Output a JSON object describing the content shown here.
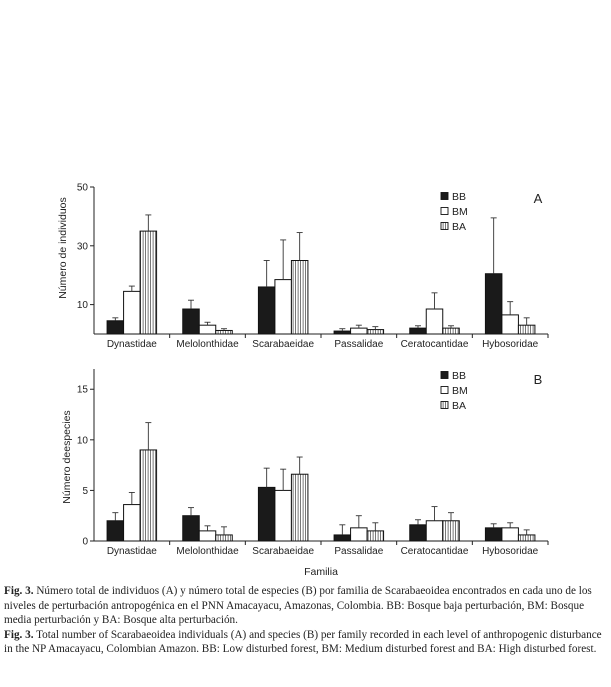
{
  "chart_data": [
    {
      "type": "bar",
      "panel_label": "A",
      "ylabel": "Número de individuos",
      "xlabel": "",
      "ylim": [
        0,
        50
      ],
      "yticks": [
        10,
        30,
        50
      ],
      "categories": [
        "Dynastidae",
        "Melolonthidae",
        "Scarabaeidae",
        "Passalidae",
        "Ceratocantidae",
        "Hybosoridae"
      ],
      "series": [
        {
          "name": "BB",
          "values": [
            4.5,
            8.5,
            16,
            1,
            2,
            20.5
          ],
          "errors": [
            1,
            3,
            9,
            0.8,
            0.8,
            19
          ]
        },
        {
          "name": "BM",
          "values": [
            14.5,
            3,
            18.5,
            2,
            8.5,
            6.5
          ],
          "errors": [
            1.8,
            1,
            13.5,
            1,
            5.5,
            4.5
          ]
        },
        {
          "name": "BA",
          "values": [
            35,
            1.2,
            25,
            1.5,
            2,
            3
          ],
          "errors": [
            5.5,
            0.6,
            9.5,
            1,
            0.8,
            2.5
          ]
        }
      ],
      "legend_position": "top-right",
      "grid": false
    },
    {
      "type": "bar",
      "panel_label": "B",
      "ylabel": "Número deespecies",
      "xlabel": "Familia",
      "ylim": [
        0,
        17
      ],
      "yticks": [
        0,
        5,
        10,
        15
      ],
      "categories": [
        "Dynastidae",
        "Melolonthidae",
        "Scarabaeidae",
        "Passalidae",
        "Ceratocantidae",
        "Hybosoridae"
      ],
      "series": [
        {
          "name": "BB",
          "values": [
            2,
            2.5,
            5.3,
            0.6,
            1.6,
            1.3
          ],
          "errors": [
            0.8,
            0.8,
            1.9,
            1,
            0.5,
            0.4
          ]
        },
        {
          "name": "BM",
          "values": [
            3.6,
            1,
            5,
            1.3,
            2,
            1.3
          ],
          "errors": [
            1.2,
            0.5,
            2.1,
            1.2,
            1.4,
            0.5
          ]
        },
        {
          "name": "BA",
          "values": [
            9,
            0.6,
            6.6,
            1,
            2,
            0.6
          ],
          "errors": [
            2.7,
            0.8,
            1.7,
            0.8,
            0.8,
            0.5
          ]
        }
      ],
      "legend_position": "top-right",
      "grid": false
    }
  ],
  "caption": {
    "es_label": "Fig. 3.",
    "es_text": " Número total de individuos (A) y número total de especies (B) por familia de Scarabaeoidea encontrados en cada uno de los niveles de perturbación antropogénica en el PNN Amacayacu, Amazonas, Colombia. BB: Bosque baja perturbación, BM: Bosque media perturbación y BA: Bosque alta perturbación.",
    "en_label": "Fig. 3.",
    "en_text": " Total number of Scarabaeoidea individuals (A) and species (B) per family recorded in each level of anthropogenic disturbance in the NP Amacayacu, Colombian Amazon. BB: Low disturbed forest, BM: Medium disturbed forest and BA: High disturbed forest."
  },
  "colors": {
    "BB": "#1a1a1a",
    "BM": "#ffffff",
    "BA_hatch": "#555555",
    "axis": "#222222"
  }
}
